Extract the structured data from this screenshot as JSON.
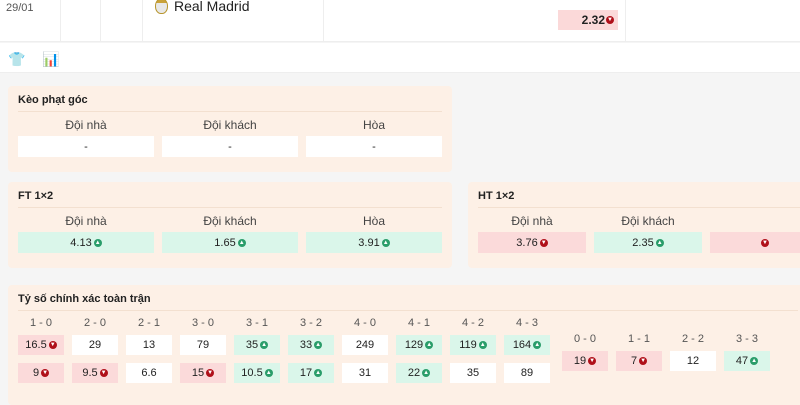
{
  "match": {
    "date": "29/01",
    "team": "Real Madrid",
    "odd": {
      "v": "2.32",
      "dir": "dn"
    }
  },
  "icons": [
    "shirt-icon",
    "stats-icon"
  ],
  "corner": {
    "title": "Kèo phạt góc",
    "cols": [
      {
        "label": "Đội nhà",
        "v": "-",
        "dir": ""
      },
      {
        "label": "Đội khách",
        "v": "-",
        "dir": ""
      },
      {
        "label": "Hòa",
        "v": "-",
        "dir": ""
      }
    ]
  },
  "ft": {
    "title": "FT 1×2",
    "cols": [
      {
        "label": "Đội nhà",
        "v": "4.13",
        "dir": "up"
      },
      {
        "label": "Đội khách",
        "v": "1.65",
        "dir": "up"
      },
      {
        "label": "Hòa",
        "v": "3.91",
        "dir": "up"
      }
    ]
  },
  "ht": {
    "title": "HT 1×2",
    "cols": [
      {
        "label": "Đội nhà",
        "v": "3.76",
        "dir": "dn"
      },
      {
        "label": "Đội khách",
        "v": "2.35",
        "dir": "up"
      },
      {
        "label": "",
        "v": "",
        "dir": "dn"
      }
    ]
  },
  "exact": {
    "title": "Tỷ số chính xác toàn trận",
    "home": [
      {
        "s": "1 - 0",
        "a": {
          "v": "16.5",
          "dir": "dn"
        },
        "b": {
          "v": "9",
          "dir": "dn"
        }
      },
      {
        "s": "2 - 0",
        "a": {
          "v": "29",
          "dir": ""
        },
        "b": {
          "v": "9.5",
          "dir": "dn"
        }
      },
      {
        "s": "2 - 1",
        "a": {
          "v": "13",
          "dir": ""
        },
        "b": {
          "v": "6.6",
          "dir": ""
        }
      },
      {
        "s": "3 - 0",
        "a": {
          "v": "79",
          "dir": ""
        },
        "b": {
          "v": "15",
          "dir": "dn"
        }
      },
      {
        "s": "3 - 1",
        "a": {
          "v": "35",
          "dir": "up"
        },
        "b": {
          "v": "10.5",
          "dir": "up"
        }
      },
      {
        "s": "3 - 2",
        "a": {
          "v": "33",
          "dir": "up"
        },
        "b": {
          "v": "17",
          "dir": "up"
        }
      },
      {
        "s": "4 - 0",
        "a": {
          "v": "249",
          "dir": ""
        },
        "b": {
          "v": "31",
          "dir": ""
        }
      },
      {
        "s": "4 - 1",
        "a": {
          "v": "129",
          "dir": "up"
        },
        "b": {
          "v": "22",
          "dir": "up"
        }
      },
      {
        "s": "4 - 2",
        "a": {
          "v": "119",
          "dir": "up"
        },
        "b": {
          "v": "35",
          "dir": ""
        }
      },
      {
        "s": "4 - 3",
        "a": {
          "v": "164",
          "dir": "up"
        },
        "b": {
          "v": "89",
          "dir": ""
        }
      }
    ],
    "draw": [
      {
        "s": "0 - 0",
        "a": {
          "v": "19",
          "dir": "dn"
        }
      },
      {
        "s": "1 - 1",
        "a": {
          "v": "7",
          "dir": "dn"
        }
      },
      {
        "s": "2 - 2",
        "a": {
          "v": "12",
          "dir": ""
        }
      },
      {
        "s": "3 - 3",
        "a": {
          "v": "47",
          "dir": "up"
        }
      }
    ]
  }
}
